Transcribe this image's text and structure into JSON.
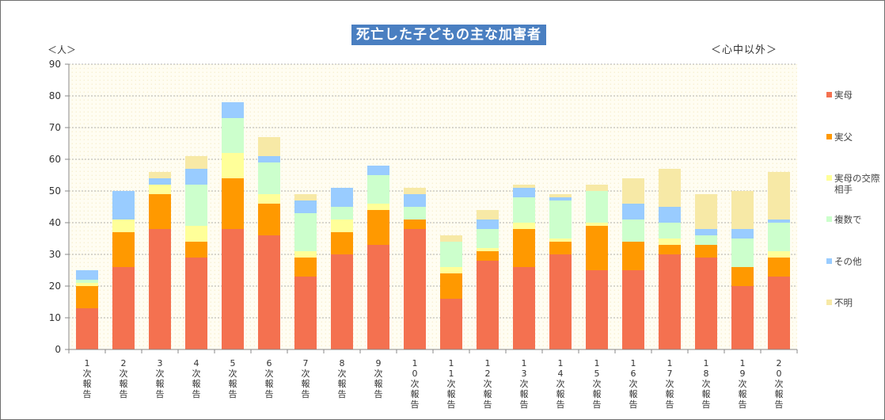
{
  "chart_data": {
    "type": "bar",
    "stacked": true,
    "title": "死亡した子どもの主な加害者",
    "subtitle": "＜心中以外＞",
    "ylabel": "＜人＞",
    "xlabel": "",
    "ylim": [
      0,
      90
    ],
    "yticks": [
      0,
      10,
      20,
      30,
      40,
      50,
      60,
      70,
      80,
      90
    ],
    "grid": true,
    "legend_position": "right",
    "categories": [
      "1次報告",
      "2次報告",
      "3次報告",
      "4次報告",
      "5次報告",
      "6次報告",
      "7次報告",
      "8次報告",
      "9次報告",
      "10次報告",
      "11次報告",
      "12次報告",
      "13次報告",
      "14次報告",
      "15次報告",
      "16次報告",
      "17次報告",
      "18次報告",
      "19次報告",
      "20次報告"
    ],
    "category_labels": [
      [
        "1",
        "次",
        "報",
        "告"
      ],
      [
        "2",
        "次",
        "報",
        "告"
      ],
      [
        "3",
        "次",
        "報",
        "告"
      ],
      [
        "4",
        "次",
        "報",
        "告"
      ],
      [
        "5",
        "次",
        "報",
        "告"
      ],
      [
        "6",
        "次",
        "報",
        "告"
      ],
      [
        "7",
        "次",
        "報",
        "告"
      ],
      [
        "8",
        "次",
        "報",
        "告"
      ],
      [
        "9",
        "次",
        "報",
        "告"
      ],
      [
        "1",
        "0",
        "次",
        "報",
        "告"
      ],
      [
        "1",
        "1",
        "次",
        "報",
        "告"
      ],
      [
        "1",
        "2",
        "次",
        "報",
        "告"
      ],
      [
        "1",
        "3",
        "次",
        "報",
        "告"
      ],
      [
        "1",
        "4",
        "次",
        "報",
        "告"
      ],
      [
        "1",
        "5",
        "次",
        "報",
        "告"
      ],
      [
        "1",
        "6",
        "次",
        "報",
        "告"
      ],
      [
        "1",
        "7",
        "次",
        "報",
        "告"
      ],
      [
        "1",
        "8",
        "次",
        "報",
        "告"
      ],
      [
        "1",
        "9",
        "次",
        "報",
        "告"
      ],
      [
        "2",
        "0",
        "次",
        "報",
        "告"
      ]
    ],
    "series": [
      {
        "name": "実母",
        "legend_lines": [
          "実母"
        ],
        "color": "#f47150",
        "values": [
          13,
          26,
          38,
          29,
          38,
          36,
          23,
          30,
          33,
          38,
          16,
          28,
          26,
          30,
          25,
          25,
          30,
          29,
          20,
          23
        ]
      },
      {
        "name": "実父",
        "legend_lines": [
          "実父"
        ],
        "color": "#ff9900",
        "values": [
          7,
          11,
          11,
          5,
          16,
          10,
          6,
          7,
          11,
          3,
          8,
          3,
          12,
          4,
          14,
          9,
          3,
          4,
          6,
          6
        ]
      },
      {
        "name": "実母の交際相手",
        "legend_lines": [
          "実母の交際",
          "相手"
        ],
        "color": "#ffff99",
        "values": [
          1,
          4,
          3,
          5,
          8,
          3,
          2,
          4,
          2,
          0,
          2,
          1,
          2,
          1,
          1,
          0,
          2,
          0,
          0,
          2
        ]
      },
      {
        "name": "複数で",
        "legend_lines": [
          "複数で"
        ],
        "color": "#ccffcc",
        "values": [
          1,
          0,
          0,
          13,
          11,
          10,
          12,
          4,
          9,
          4,
          8,
          6,
          8,
          12,
          10,
          7,
          5,
          3,
          9,
          9
        ]
      },
      {
        "name": "その他",
        "legend_lines": [
          "その他"
        ],
        "color": "#99ccff",
        "values": [
          3,
          9,
          2,
          5,
          5,
          2,
          4,
          6,
          3,
          4,
          0,
          3,
          3,
          1,
          0,
          5,
          5,
          2,
          3,
          1
        ]
      },
      {
        "name": "不明",
        "legend_lines": [
          "不明"
        ],
        "color": "#f7e9a6",
        "values": [
          0,
          0,
          2,
          4,
          0,
          6,
          2,
          0,
          0,
          2,
          2,
          3,
          1,
          1,
          2,
          8,
          12,
          11,
          12,
          15
        ]
      }
    ]
  }
}
